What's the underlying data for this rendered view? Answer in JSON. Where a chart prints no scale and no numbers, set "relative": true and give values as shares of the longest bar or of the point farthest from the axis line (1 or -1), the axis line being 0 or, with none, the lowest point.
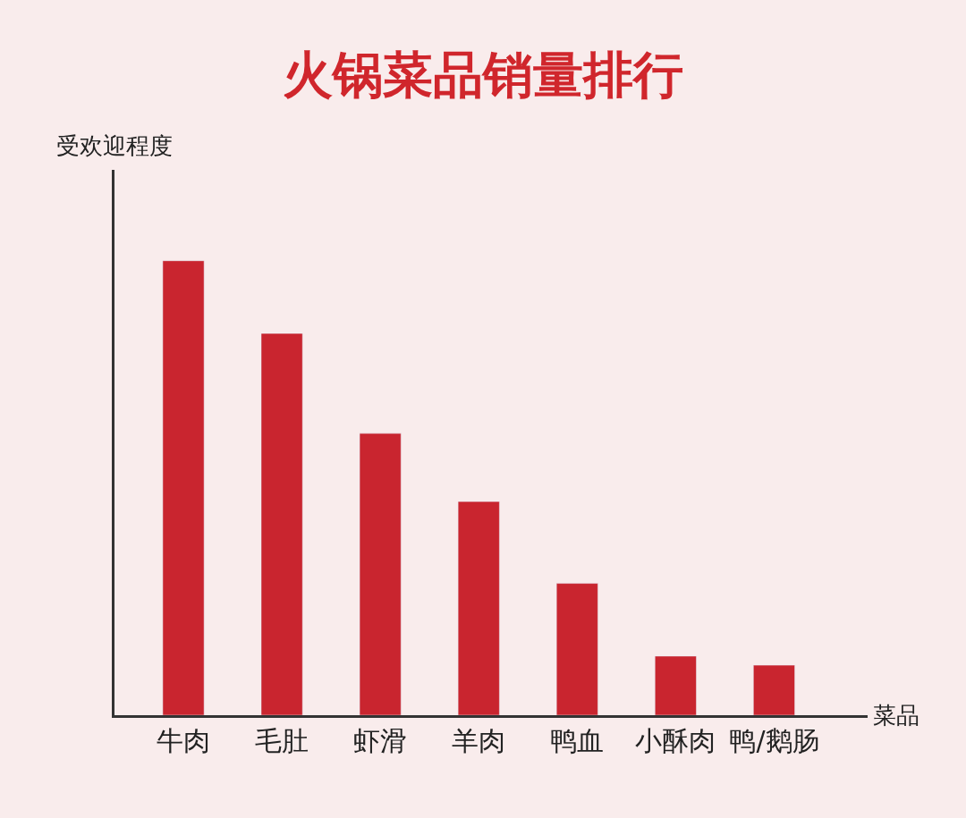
{
  "chart_data": {
    "type": "bar",
    "title": "火锅菜品销量排行",
    "xlabel": "菜品",
    "ylabel": "受欢迎程度",
    "relative": true,
    "categories": [
      "牛肉",
      "毛肚",
      "虾滑",
      "羊肉",
      "鸭血",
      "小酥肉",
      "鸭/鹅肠"
    ],
    "values": [
      1,
      0.84,
      0.62,
      0.47,
      0.29,
      0.13,
      0.11
    ],
    "color": "#c9252f",
    "grid": false,
    "legend": false
  }
}
